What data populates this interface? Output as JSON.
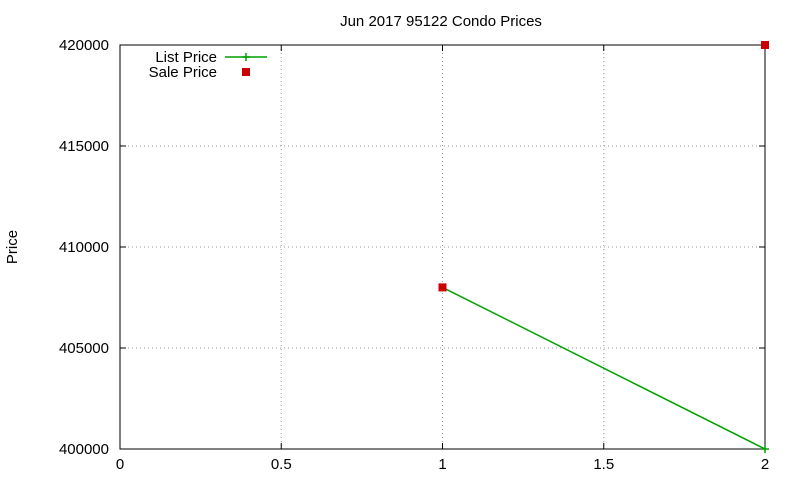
{
  "chart_data": {
    "type": "line",
    "title": "Jun 2017 95122 Condo Prices",
    "xlabel": "",
    "ylabel": "Price",
    "xlim": [
      0,
      2
    ],
    "ylim": [
      400000,
      420000
    ],
    "xticks": [
      0,
      0.5,
      1,
      1.5,
      2
    ],
    "xtick_labels": [
      "0",
      "0.5",
      "1",
      "1.5",
      "2"
    ],
    "yticks": [
      400000,
      405000,
      410000,
      415000,
      420000
    ],
    "ytick_labels": [
      "400000",
      "405000",
      "410000",
      "415000",
      "420000"
    ],
    "grid": true,
    "legend_position": "top-left",
    "series": [
      {
        "name": "List Price",
        "kind": "line",
        "marker": "plus",
        "color": "#00a000",
        "points": [
          [
            1,
            408000
          ],
          [
            2,
            400000
          ]
        ]
      },
      {
        "name": "Sale Price",
        "kind": "points",
        "marker": "square",
        "color": "#cc0000",
        "points": [
          [
            1,
            408000
          ],
          [
            2,
            420000
          ]
        ]
      }
    ]
  }
}
